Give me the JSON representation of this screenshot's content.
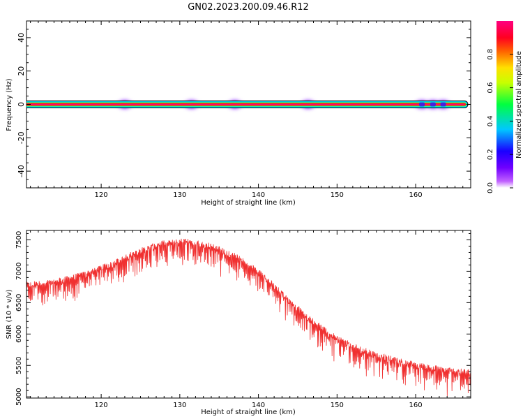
{
  "title": "GN02.2023.200.09.46.R12",
  "chart_data": [
    {
      "type": "heatmap",
      "xlabel": "Height of straight line (km)",
      "ylabel": "Frequency (Hz)",
      "xlim": [
        110.5,
        167
      ],
      "ylim": [
        -50,
        50
      ],
      "xticks": [
        120,
        130,
        140,
        150,
        160
      ],
      "yticks": [
        40,
        20,
        0,
        -20,
        -40
      ],
      "colorbar": {
        "label": "Normalized spectral amplitude",
        "ticks": [
          0.0,
          0.2,
          0.4,
          0.6,
          0.8
        ],
        "range": [
          0,
          1
        ],
        "colormap": "gist_rainbow_r (violet→blue→cyan→green→yellow→red→magenta)"
      },
      "band": {
        "x_start": 110.5,
        "x_end": 166.2,
        "frequency": 0,
        "amplitude": 0.85
      },
      "blobs": [
        {
          "x": 123.0,
          "amplitude": 0.15
        },
        {
          "x": 131.5,
          "amplitude": 0.2
        },
        {
          "x": 137.0,
          "amplitude": 0.15
        },
        {
          "x": 146.3,
          "amplitude": 0.25
        },
        {
          "x": 160.8,
          "amplitude": 0.3
        },
        {
          "x": 162.2,
          "amplitude": 0.3
        },
        {
          "x": 163.5,
          "amplitude": 0.3
        }
      ]
    },
    {
      "type": "line",
      "xlabel": "Height of straight line (km)",
      "ylabel": "SNR (10 * v/v)",
      "xlim": [
        110.5,
        167
      ],
      "ylim": [
        4980,
        7650
      ],
      "xticks": [
        120,
        130,
        140,
        150,
        160
      ],
      "yticks": [
        5000,
        5500,
        6000,
        6500,
        7000,
        7500
      ],
      "color": "#f03030",
      "trend": {
        "x": [
          110.5,
          113,
          116,
          119,
          122,
          125,
          128,
          131,
          134,
          137,
          140,
          143,
          146,
          149,
          152,
          155,
          158,
          161,
          164,
          167
        ],
        "y": [
          6780,
          6800,
          6880,
          6990,
          7150,
          7330,
          7440,
          7480,
          7400,
          7240,
          6990,
          6640,
          6290,
          6000,
          5800,
          5660,
          5560,
          5480,
          5420,
          5380
        ]
      }
    }
  ]
}
